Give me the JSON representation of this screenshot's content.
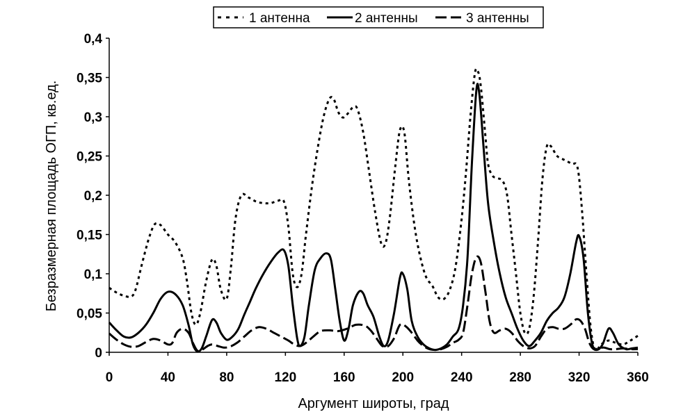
{
  "chart_data": {
    "type": "line",
    "xlabel": "Аргумент широты, град",
    "ylabel": "Безразмерная площадь ОГП, кв.ед.",
    "xlim": [
      0,
      360
    ],
    "ylim": [
      0,
      0.4
    ],
    "xticks": [
      "0",
      "40",
      "80",
      "120",
      "160",
      "200",
      "240",
      "280",
      "320",
      "360"
    ],
    "yticks": [
      "0",
      "0,05",
      "0,1",
      "0,15",
      "0,2",
      "0,25",
      "0,3",
      "0,35",
      "0,4"
    ],
    "legend_position": "top",
    "grid": false,
    "series": [
      {
        "name": "1 антенна",
        "style": "dotted",
        "color": "#000000",
        "points": [
          [
            0,
            0.082
          ],
          [
            5,
            0.076
          ],
          [
            10,
            0.072
          ],
          [
            15,
            0.071
          ],
          [
            18,
            0.08
          ],
          [
            22,
            0.11
          ],
          [
            27,
            0.145
          ],
          [
            31,
            0.163
          ],
          [
            35,
            0.162
          ],
          [
            40,
            0.15
          ],
          [
            45,
            0.14
          ],
          [
            50,
            0.12
          ],
          [
            53,
            0.09
          ],
          [
            56,
            0.05
          ],
          [
            59,
            0.035
          ],
          [
            62,
            0.05
          ],
          [
            66,
            0.09
          ],
          [
            70,
            0.118
          ],
          [
            73,
            0.11
          ],
          [
            76,
            0.08
          ],
          [
            80,
            0.068
          ],
          [
            83,
            0.11
          ],
          [
            86,
            0.17
          ],
          [
            90,
            0.2
          ],
          [
            95,
            0.197
          ],
          [
            100,
            0.192
          ],
          [
            105,
            0.19
          ],
          [
            110,
            0.19
          ],
          [
            115,
            0.193
          ],
          [
            119,
            0.192
          ],
          [
            122,
            0.16
          ],
          [
            125,
            0.1
          ],
          [
            128,
            0.083
          ],
          [
            131,
            0.1
          ],
          [
            134,
            0.15
          ],
          [
            138,
            0.21
          ],
          [
            142,
            0.26
          ],
          [
            146,
            0.3
          ],
          [
            150,
            0.323
          ],
          [
            153,
            0.322
          ],
          [
            156,
            0.306
          ],
          [
            159,
            0.299
          ],
          [
            162,
            0.303
          ],
          [
            166,
            0.312
          ],
          [
            169,
            0.31
          ],
          [
            173,
            0.28
          ],
          [
            177,
            0.23
          ],
          [
            181,
            0.18
          ],
          [
            185,
            0.14
          ],
          [
            188,
            0.138
          ],
          [
            191,
            0.17
          ],
          [
            195,
            0.24
          ],
          [
            198,
            0.283
          ],
          [
            201,
            0.28
          ],
          [
            204,
            0.22
          ],
          [
            208,
            0.16
          ],
          [
            212,
            0.12
          ],
          [
            216,
            0.095
          ],
          [
            220,
            0.085
          ],
          [
            224,
            0.07
          ],
          [
            228,
            0.068
          ],
          [
            232,
            0.08
          ],
          [
            236,
            0.11
          ],
          [
            240,
            0.17
          ],
          [
            243,
            0.23
          ],
          [
            246,
            0.3
          ],
          [
            249,
            0.355
          ],
          [
            251,
            0.358
          ],
          [
            253,
            0.34
          ],
          [
            256,
            0.28
          ],
          [
            258,
            0.24
          ],
          [
            261,
            0.225
          ],
          [
            264,
            0.222
          ],
          [
            268,
            0.218
          ],
          [
            271,
            0.2
          ],
          [
            274,
            0.15
          ],
          [
            277,
            0.1
          ],
          [
            280,
            0.05
          ],
          [
            283,
            0.025
          ],
          [
            286,
            0.03
          ],
          [
            289,
            0.07
          ],
          [
            292,
            0.14
          ],
          [
            295,
            0.22
          ],
          [
            298,
            0.262
          ],
          [
            301,
            0.262
          ],
          [
            305,
            0.25
          ],
          [
            310,
            0.245
          ],
          [
            315,
            0.24
          ],
          [
            319,
            0.235
          ],
          [
            322,
            0.18
          ],
          [
            325,
            0.1
          ],
          [
            328,
            0.03
          ],
          [
            331,
            0.003
          ],
          [
            335,
            0.01
          ],
          [
            340,
            0.015
          ],
          [
            345,
            0.012
          ],
          [
            350,
            0.01
          ],
          [
            355,
            0.015
          ],
          [
            360,
            0.021
          ]
        ]
      },
      {
        "name": "2 антенны",
        "style": "solid",
        "color": "#000000",
        "points": [
          [
            0,
            0.038
          ],
          [
            5,
            0.028
          ],
          [
            10,
            0.02
          ],
          [
            15,
            0.019
          ],
          [
            20,
            0.025
          ],
          [
            25,
            0.035
          ],
          [
            30,
            0.05
          ],
          [
            35,
            0.068
          ],
          [
            40,
            0.077
          ],
          [
            45,
            0.074
          ],
          [
            50,
            0.06
          ],
          [
            54,
            0.035
          ],
          [
            57,
            0.01
          ],
          [
            60,
            0.001
          ],
          [
            63,
            0.005
          ],
          [
            66,
            0.02
          ],
          [
            70,
            0.041
          ],
          [
            73,
            0.038
          ],
          [
            76,
            0.025
          ],
          [
            80,
            0.016
          ],
          [
            84,
            0.02
          ],
          [
            88,
            0.03
          ],
          [
            92,
            0.048
          ],
          [
            96,
            0.065
          ],
          [
            100,
            0.082
          ],
          [
            105,
            0.1
          ],
          [
            110,
            0.115
          ],
          [
            115,
            0.127
          ],
          [
            119,
            0.13
          ],
          [
            122,
            0.11
          ],
          [
            125,
            0.06
          ],
          [
            128,
            0.018
          ],
          [
            130,
            0.008
          ],
          [
            133,
            0.02
          ],
          [
            136,
            0.06
          ],
          [
            140,
            0.105
          ],
          [
            144,
            0.12
          ],
          [
            148,
            0.126
          ],
          [
            151,
            0.118
          ],
          [
            154,
            0.08
          ],
          [
            157,
            0.04
          ],
          [
            160,
            0.015
          ],
          [
            163,
            0.03
          ],
          [
            166,
            0.06
          ],
          [
            170,
            0.077
          ],
          [
            173,
            0.075
          ],
          [
            176,
            0.06
          ],
          [
            180,
            0.045
          ],
          [
            184,
            0.02
          ],
          [
            187,
            0.008
          ],
          [
            190,
            0.015
          ],
          [
            194,
            0.05
          ],
          [
            198,
            0.095
          ],
          [
            200,
            0.1
          ],
          [
            203,
            0.08
          ],
          [
            206,
            0.04
          ],
          [
            210,
            0.02
          ],
          [
            214,
            0.01
          ],
          [
            218,
            0.005
          ],
          [
            222,
            0.003
          ],
          [
            226,
            0.005
          ],
          [
            230,
            0.01
          ],
          [
            234,
            0.02
          ],
          [
            238,
            0.03
          ],
          [
            241,
            0.06
          ],
          [
            244,
            0.12
          ],
          [
            247,
            0.24
          ],
          [
            250,
            0.333
          ],
          [
            252,
            0.33
          ],
          [
            255,
            0.26
          ],
          [
            258,
            0.19
          ],
          [
            262,
            0.14
          ],
          [
            266,
            0.1
          ],
          [
            270,
            0.07
          ],
          [
            274,
            0.05
          ],
          [
            278,
            0.03
          ],
          [
            282,
            0.015
          ],
          [
            286,
            0.008
          ],
          [
            290,
            0.015
          ],
          [
            294,
            0.025
          ],
          [
            298,
            0.04
          ],
          [
            302,
            0.05
          ],
          [
            306,
            0.057
          ],
          [
            310,
            0.07
          ],
          [
            314,
            0.1
          ],
          [
            318,
            0.14
          ],
          [
            320,
            0.148
          ],
          [
            323,
            0.12
          ],
          [
            326,
            0.05
          ],
          [
            329,
            0.01
          ],
          [
            332,
            0.003
          ],
          [
            336,
            0.01
          ],
          [
            340,
            0.03
          ],
          [
            343,
            0.025
          ],
          [
            347,
            0.01
          ],
          [
            352,
            0.004
          ],
          [
            356,
            0.005
          ],
          [
            360,
            0.006
          ]
        ]
      },
      {
        "name": "3 антенны",
        "style": "dashed",
        "color": "#000000",
        "points": [
          [
            0,
            0.024
          ],
          [
            5,
            0.016
          ],
          [
            10,
            0.01
          ],
          [
            15,
            0.007
          ],
          [
            20,
            0.008
          ],
          [
            25,
            0.013
          ],
          [
            30,
            0.017
          ],
          [
            35,
            0.015
          ],
          [
            40,
            0.01
          ],
          [
            43,
            0.012
          ],
          [
            46,
            0.025
          ],
          [
            50,
            0.03
          ],
          [
            54,
            0.025
          ],
          [
            57,
            0.012
          ],
          [
            60,
            0.002
          ],
          [
            63,
            0.003
          ],
          [
            67,
            0.008
          ],
          [
            70,
            0.01
          ],
          [
            74,
            0.008
          ],
          [
            78,
            0.006
          ],
          [
            82,
            0.007
          ],
          [
            87,
            0.012
          ],
          [
            92,
            0.02
          ],
          [
            97,
            0.028
          ],
          [
            102,
            0.032
          ],
          [
            107,
            0.03
          ],
          [
            112,
            0.025
          ],
          [
            117,
            0.02
          ],
          [
            122,
            0.015
          ],
          [
            126,
            0.01
          ],
          [
            130,
            0.008
          ],
          [
            134,
            0.012
          ],
          [
            139,
            0.02
          ],
          [
            144,
            0.027
          ],
          [
            150,
            0.028
          ],
          [
            156,
            0.027
          ],
          [
            162,
            0.03
          ],
          [
            168,
            0.035
          ],
          [
            174,
            0.034
          ],
          [
            178,
            0.028
          ],
          [
            182,
            0.018
          ],
          [
            186,
            0.008
          ],
          [
            190,
            0.008
          ],
          [
            194,
            0.018
          ],
          [
            198,
            0.035
          ],
          [
            202,
            0.033
          ],
          [
            206,
            0.025
          ],
          [
            210,
            0.015
          ],
          [
            214,
            0.008
          ],
          [
            218,
            0.004
          ],
          [
            222,
            0.003
          ],
          [
            226,
            0.004
          ],
          [
            230,
            0.007
          ],
          [
            234,
            0.012
          ],
          [
            238,
            0.016
          ],
          [
            241,
            0.025
          ],
          [
            244,
            0.06
          ],
          [
            247,
            0.1
          ],
          [
            250,
            0.121
          ],
          [
            253,
            0.115
          ],
          [
            256,
            0.08
          ],
          [
            259,
            0.04
          ],
          [
            262,
            0.025
          ],
          [
            266,
            0.028
          ],
          [
            270,
            0.03
          ],
          [
            274,
            0.025
          ],
          [
            278,
            0.015
          ],
          [
            282,
            0.008
          ],
          [
            286,
            0.005
          ],
          [
            290,
            0.008
          ],
          [
            294,
            0.02
          ],
          [
            298,
            0.03
          ],
          [
            302,
            0.032
          ],
          [
            306,
            0.03
          ],
          [
            310,
            0.03
          ],
          [
            314,
            0.035
          ],
          [
            318,
            0.042
          ],
          [
            321,
            0.04
          ],
          [
            324,
            0.03
          ],
          [
            327,
            0.012
          ],
          [
            330,
            0.004
          ],
          [
            333,
            0.005
          ],
          [
            337,
            0.006
          ],
          [
            341,
            0.004
          ],
          [
            345,
            0.004
          ],
          [
            350,
            0.005
          ],
          [
            355,
            0.004
          ],
          [
            360,
            0.004
          ]
        ]
      }
    ]
  }
}
